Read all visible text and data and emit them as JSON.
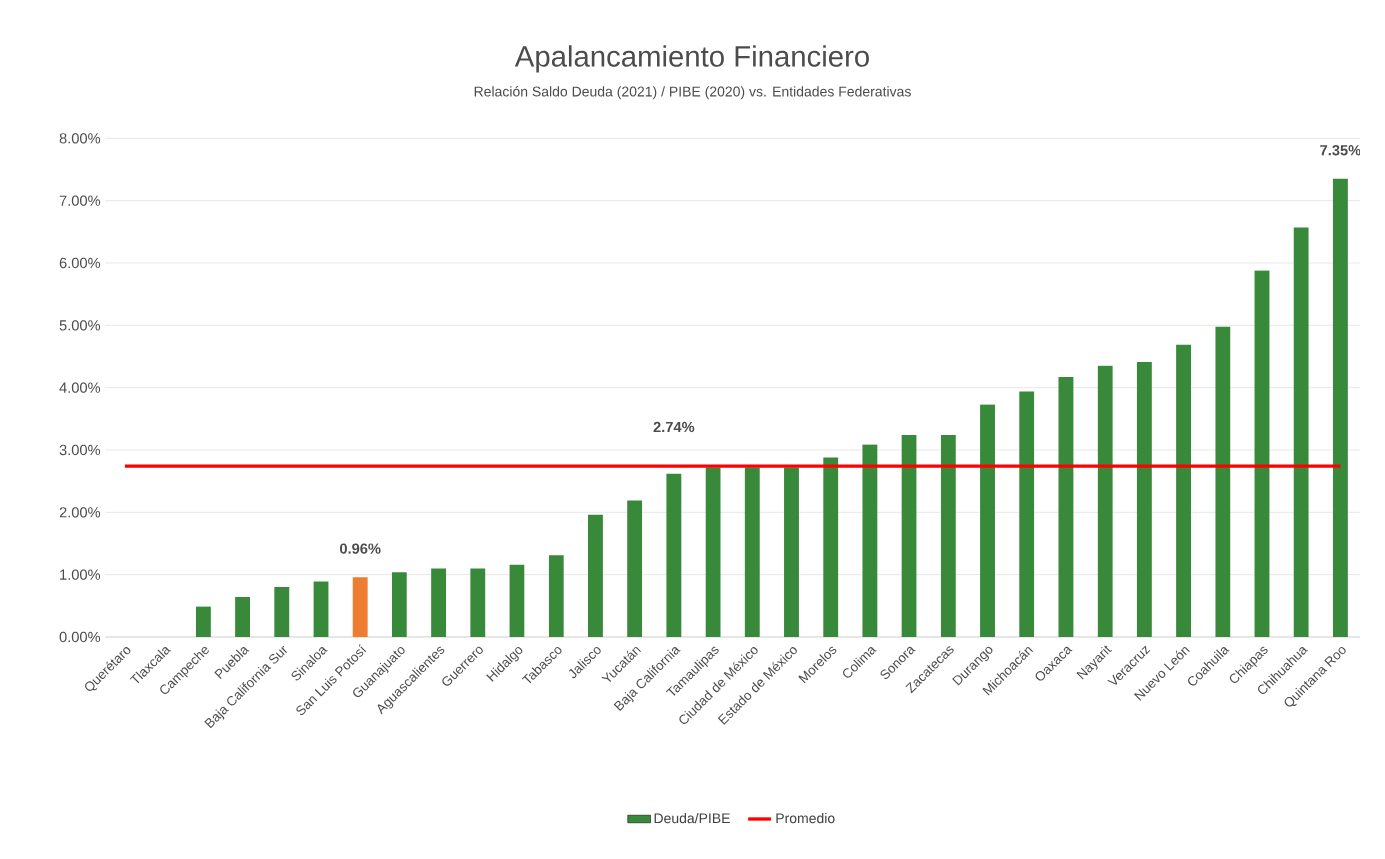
{
  "chart_data": {
    "type": "bar",
    "title": "Apalancamiento Financiero",
    "subtitle": "Relación Saldo Deuda (2021) / PIBE (2020) vs. Entidades Federativas",
    "categories": [
      "Querétaro",
      "Tlaxcala",
      "Campeche",
      "Puebla",
      "Baja California Sur",
      "Sinaloa",
      "San Luis Potosí",
      "Guanajuato",
      "Aguascalientes",
      "Guerrero",
      "Hidalgo",
      "Tabasco",
      "Jalisco",
      "Yucatán",
      "Baja California",
      "Tamaulipas",
      "Ciudad de México",
      "Estado de México",
      "Morelos",
      "Colima",
      "Sonora",
      "Zacatecas",
      "Durango",
      "Michoacán",
      "Oaxaca",
      "Nayarit",
      "Veracruz",
      "Nuevo León",
      "Coahuila",
      "Chiapas",
      "Chihuahua",
      "Quintana Roo"
    ],
    "series": [
      {
        "name": "Deuda/PIBE",
        "color": "#38893a",
        "colors": [
          "#38893a",
          "#38893a",
          "#38893a",
          "#38893a",
          "#38893a",
          "#38893a",
          "#ed7d31",
          "#38893a",
          "#38893a",
          "#38893a",
          "#38893a",
          "#38893a",
          "#38893a",
          "#38893a",
          "#38893a",
          "#38893a",
          "#38893a",
          "#38893a",
          "#38893a",
          "#38893a",
          "#38893a",
          "#38893a",
          "#38893a",
          "#38893a",
          "#38893a",
          "#38893a",
          "#38893a",
          "#38893a",
          "#38893a",
          "#38893a",
          "#38893a",
          "#38893a"
        ],
        "values": [
          0,
          0,
          0.49,
          0.64,
          0.8,
          0.89,
          0.96,
          1.04,
          1.1,
          1.1,
          1.16,
          1.31,
          1.96,
          2.19,
          2.62,
          2.72,
          2.72,
          2.72,
          2.88,
          3.09,
          3.24,
          3.24,
          3.73,
          3.94,
          4.17,
          4.35,
          4.41,
          4.69,
          4.98,
          5.88,
          6.57,
          7.35
        ],
        "value_labels": [
          null,
          null,
          null,
          null,
          null,
          null,
          "0.96%",
          null,
          null,
          null,
          null,
          null,
          null,
          null,
          null,
          null,
          null,
          null,
          null,
          null,
          null,
          null,
          null,
          null,
          null,
          null,
          null,
          null,
          null,
          null,
          null,
          "7.35%"
        ]
      },
      {
        "name": "Promedio",
        "type": "line",
        "color": "#ff0000",
        "values": [
          2.74,
          2.74,
          2.74,
          2.74,
          2.74,
          2.74,
          2.74,
          2.74,
          2.74,
          2.74,
          2.74,
          2.74,
          2.74,
          2.74,
          2.74,
          2.74,
          2.74,
          2.74,
          2.74,
          2.74,
          2.74,
          2.74,
          2.74,
          2.74,
          2.74,
          2.74,
          2.74,
          2.74,
          2.74,
          2.74,
          2.74,
          2.74
        ],
        "value_labels": [
          null,
          null,
          null,
          null,
          null,
          null,
          null,
          null,
          null,
          null,
          null,
          null,
          null,
          null,
          "2.74%",
          null,
          null,
          null,
          null,
          null,
          null,
          null,
          null,
          null,
          null,
          null,
          null,
          null,
          null,
          null,
          null,
          null
        ]
      }
    ],
    "ylim": [
      0,
      8
    ],
    "yticks": [
      {
        "value": 0,
        "label": "0.00%"
      },
      {
        "value": 1,
        "label": "1.00%"
      },
      {
        "value": 2,
        "label": "2.00%"
      },
      {
        "value": 3,
        "label": "3.00%"
      },
      {
        "value": 4,
        "label": "4.00%"
      },
      {
        "value": 5,
        "label": "5.00%"
      },
      {
        "value": 6,
        "label": "6.00%"
      },
      {
        "value": 7,
        "label": "7.00%"
      },
      {
        "value": 8,
        "label": "8.00%"
      }
    ],
    "grid": "y",
    "legend": "bottom"
  }
}
